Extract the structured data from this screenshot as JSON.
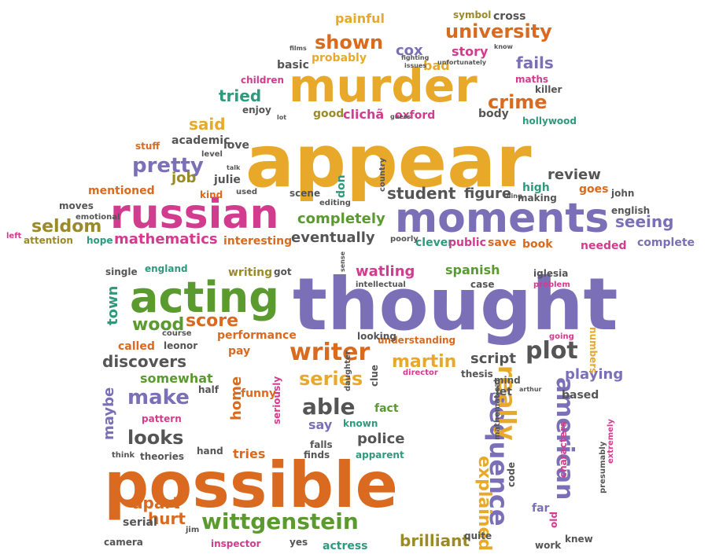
{
  "colors": {
    "gold": "#e8a92a",
    "orange": "#d96a1f",
    "green": "#5a9a2e",
    "purple": "#7b6fb8",
    "magenta": "#d23c8e",
    "teal": "#2d9a7e",
    "gray": "#555555",
    "olive": "#9a8a2a",
    "brown": "#8a6a3a"
  },
  "words": [
    {
      "text": "appear",
      "color": "gold"
    },
    {
      "text": "thought",
      "color": "purple"
    },
    {
      "text": "possible",
      "color": "orange"
    },
    {
      "text": "murder",
      "color": "gold"
    },
    {
      "text": "russian",
      "color": "magenta"
    },
    {
      "text": "moments",
      "color": "purple"
    },
    {
      "text": "acting",
      "color": "green"
    },
    {
      "text": "wittgenstein",
      "color": "green"
    },
    {
      "text": "writer",
      "color": "orange"
    },
    {
      "text": "sequence",
      "color": "purple"
    },
    {
      "text": "american",
      "color": "purple"
    },
    {
      "text": "university",
      "color": "orange"
    },
    {
      "text": "shown",
      "color": "orange"
    },
    {
      "text": "crime",
      "color": "orange"
    },
    {
      "text": "pretty",
      "color": "purple"
    },
    {
      "text": "said",
      "color": "gold"
    },
    {
      "text": "plot",
      "color": "gray"
    },
    {
      "text": "series",
      "color": "gold"
    },
    {
      "text": "able",
      "color": "gray"
    },
    {
      "text": "make",
      "color": "purple"
    },
    {
      "text": "looks",
      "color": "gray"
    },
    {
      "text": "really",
      "color": "gold"
    },
    {
      "text": "explained",
      "color": "gold"
    },
    {
      "text": "seldom",
      "color": "olive"
    },
    {
      "text": "mathematics",
      "color": "magenta"
    },
    {
      "text": "completely",
      "color": "green"
    },
    {
      "text": "eventually",
      "color": "gray"
    },
    {
      "text": "student",
      "color": "gray"
    },
    {
      "text": "seeing",
      "color": "purple"
    },
    {
      "text": "wood",
      "color": "green"
    },
    {
      "text": "score",
      "color": "orange"
    },
    {
      "text": "martin",
      "color": "gold"
    },
    {
      "text": "script",
      "color": "gray"
    },
    {
      "text": "playing",
      "color": "purple"
    },
    {
      "text": "discovers",
      "color": "gray"
    },
    {
      "text": "brilliant",
      "color": "olive"
    },
    {
      "text": "apart",
      "color": "orange"
    },
    {
      "text": "hurt",
      "color": "orange"
    },
    {
      "text": "police",
      "color": "gray"
    },
    {
      "text": "watling",
      "color": "magenta"
    },
    {
      "text": "spanish",
      "color": "green"
    },
    {
      "text": "fails",
      "color": "purple"
    },
    {
      "text": "cox",
      "color": "purple"
    },
    {
      "text": "story",
      "color": "magenta"
    },
    {
      "text": "tried",
      "color": "teal"
    },
    {
      "text": "review",
      "color": "gray"
    },
    {
      "text": "figure",
      "color": "gray"
    },
    {
      "text": "job",
      "color": "olive"
    },
    {
      "text": "somewhat",
      "color": "green"
    },
    {
      "text": "maybe",
      "color": "purple"
    },
    {
      "text": "home",
      "color": "orange"
    },
    {
      "text": "tries",
      "color": "orange"
    },
    {
      "text": "say",
      "color": "purple"
    },
    {
      "text": "fact",
      "color": "green"
    },
    {
      "text": "town",
      "color": "teal"
    },
    {
      "text": "called",
      "color": "orange"
    },
    {
      "text": "performance",
      "color": "orange"
    },
    {
      "text": "understanding",
      "color": "orange"
    },
    {
      "text": "clichã",
      "color": "magenta"
    },
    {
      "text": "oxford",
      "color": "magenta"
    },
    {
      "text": "interesting",
      "color": "orange"
    },
    {
      "text": "attention",
      "color": "olive"
    },
    {
      "text": "hope",
      "color": "teal"
    },
    {
      "text": "clever",
      "color": "teal"
    },
    {
      "text": "public",
      "color": "magenta"
    },
    {
      "text": "save",
      "color": "orange"
    },
    {
      "text": "book",
      "color": "orange"
    },
    {
      "text": "needed",
      "color": "magenta"
    },
    {
      "text": "complete",
      "color": "purple"
    },
    {
      "text": "english",
      "color": "gray"
    },
    {
      "text": "goes",
      "color": "orange"
    },
    {
      "text": "john",
      "color": "gray"
    },
    {
      "text": "high",
      "color": "teal"
    },
    {
      "text": "making",
      "color": "gray"
    },
    {
      "text": "mentioned",
      "color": "orange"
    },
    {
      "text": "moves",
      "color": "gray"
    },
    {
      "text": "left",
      "color": "magenta"
    },
    {
      "text": "kind",
      "color": "orange"
    },
    {
      "text": "julie",
      "color": "gray"
    },
    {
      "text": "scene",
      "color": "gray"
    },
    {
      "text": "don",
      "color": "teal"
    },
    {
      "text": "stuff",
      "color": "orange"
    },
    {
      "text": "academic",
      "color": "gray"
    },
    {
      "text": "love",
      "color": "gray"
    },
    {
      "text": "children",
      "color": "magenta"
    },
    {
      "text": "enjoy",
      "color": "gray"
    },
    {
      "text": "good",
      "color": "olive"
    },
    {
      "text": "basic",
      "color": "gray"
    },
    {
      "text": "probably",
      "color": "gold"
    },
    {
      "text": "painful",
      "color": "gold"
    },
    {
      "text": "symbol",
      "color": "olive"
    },
    {
      "text": "cross",
      "color": "gray"
    },
    {
      "text": "bad",
      "color": "gold"
    },
    {
      "text": "maths",
      "color": "magenta"
    },
    {
      "text": "killer",
      "color": "gray"
    },
    {
      "text": "body",
      "color": "gray"
    },
    {
      "text": "hollywood",
      "color": "teal"
    },
    {
      "text": "guess",
      "color": "gray"
    },
    {
      "text": "lot",
      "color": "gray"
    },
    {
      "text": "films",
      "color": "gray"
    },
    {
      "text": "fighting",
      "color": "gray"
    },
    {
      "text": "issues",
      "color": "gray"
    },
    {
      "text": "unfortunately",
      "color": "gray"
    },
    {
      "text": "know",
      "color": "gray"
    },
    {
      "text": "level",
      "color": "gray"
    },
    {
      "text": "talk",
      "color": "gray"
    },
    {
      "text": "used",
      "color": "gray"
    },
    {
      "text": "editing",
      "color": "gray"
    },
    {
      "text": "country",
      "color": "gray"
    },
    {
      "text": "thing",
      "color": "gray"
    },
    {
      "text": "emotional",
      "color": "gray"
    },
    {
      "text": "poorly",
      "color": "gray"
    },
    {
      "text": "single",
      "color": "gray"
    },
    {
      "text": "england",
      "color": "teal"
    },
    {
      "text": "writing",
      "color": "olive"
    },
    {
      "text": "got",
      "color": "gray"
    },
    {
      "text": "sense",
      "color": "gray"
    },
    {
      "text": "intellectual",
      "color": "gray"
    },
    {
      "text": "case",
      "color": "gray"
    },
    {
      "text": "iglesia",
      "color": "gray"
    },
    {
      "text": "problem",
      "color": "magenta"
    },
    {
      "text": "course",
      "color": "gray"
    },
    {
      "text": "leonor",
      "color": "gray"
    },
    {
      "text": "looking",
      "color": "gray"
    },
    {
      "text": "going",
      "color": "magenta"
    },
    {
      "text": "numbers",
      "color": "gold"
    },
    {
      "text": "pay",
      "color": "orange"
    },
    {
      "text": "half",
      "color": "gray"
    },
    {
      "text": "funny",
      "color": "orange"
    },
    {
      "text": "daughter",
      "color": "gray"
    },
    {
      "text": "clue",
      "color": "gray"
    },
    {
      "text": "director",
      "color": "magenta"
    },
    {
      "text": "thesis",
      "color": "gray"
    },
    {
      "text": "mind",
      "color": "gray"
    },
    {
      "text": "arthur",
      "color": "gray"
    },
    {
      "text": "based",
      "color": "gray"
    },
    {
      "text": "let",
      "color": "gray"
    },
    {
      "text": "pattern",
      "color": "magenta"
    },
    {
      "text": "seriously",
      "color": "magenta"
    },
    {
      "text": "known",
      "color": "teal"
    },
    {
      "text": "think",
      "color": "gray"
    },
    {
      "text": "theories",
      "color": "gray"
    },
    {
      "text": "hand",
      "color": "gray"
    },
    {
      "text": "falls",
      "color": "gray"
    },
    {
      "text": "finds",
      "color": "gray"
    },
    {
      "text": "apparent",
      "color": "teal"
    },
    {
      "text": "mathematical",
      "color": "gray"
    },
    {
      "text": "code",
      "color": "gray"
    },
    {
      "text": "characters",
      "color": "magenta"
    },
    {
      "text": "presumably",
      "color": "gray"
    },
    {
      "text": "extremely",
      "color": "magenta"
    },
    {
      "text": "far",
      "color": "purple"
    },
    {
      "text": "old",
      "color": "magenta"
    },
    {
      "text": "knew",
      "color": "gray"
    },
    {
      "text": "work",
      "color": "gray"
    },
    {
      "text": "serial",
      "color": "gray"
    },
    {
      "text": "camera",
      "color": "gray"
    },
    {
      "text": "jim",
      "color": "gray"
    },
    {
      "text": "inspector",
      "color": "magenta"
    },
    {
      "text": "yes",
      "color": "gray"
    },
    {
      "text": "actress",
      "color": "teal"
    },
    {
      "text": "quite",
      "color": "gray"
    }
  ]
}
